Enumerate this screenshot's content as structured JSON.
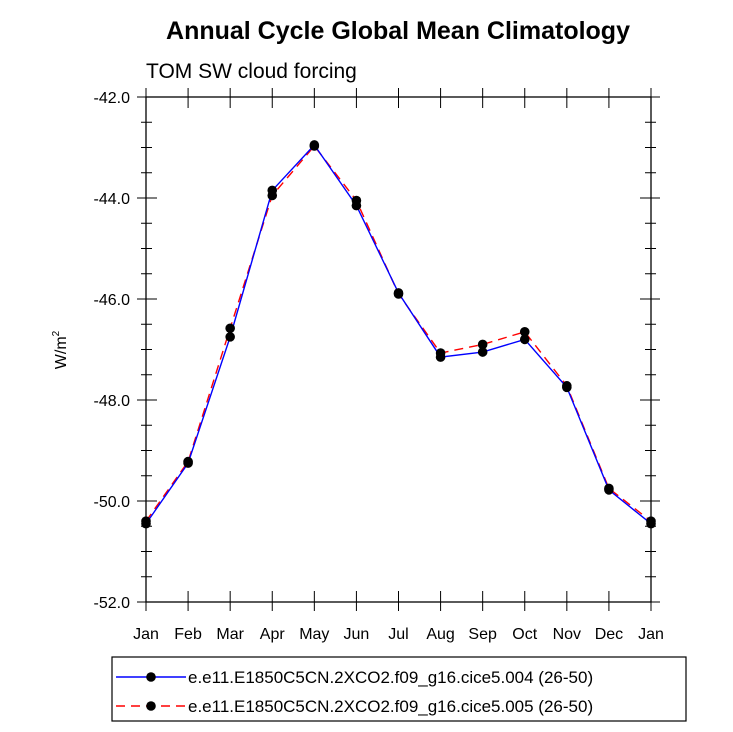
{
  "chart_data": {
    "type": "line",
    "title": "Annual Cycle Global Mean Climatology",
    "subtitle": "TOM SW cloud forcing",
    "xlabel": "",
    "ylabel": "W/m",
    "ylabel_superscript": "2",
    "categories": [
      "Jan",
      "Feb",
      "Mar",
      "Apr",
      "May",
      "Jun",
      "Jul",
      "Aug",
      "Sep",
      "Oct",
      "Nov",
      "Dec",
      "Jan"
    ],
    "ylim": [
      -52.0,
      -42.0
    ],
    "yticks": [
      -42.0,
      -44.0,
      -46.0,
      -48.0,
      -50.0,
      -52.0
    ],
    "ytick_labels": [
      "-42.0",
      "-44.0",
      "-46.0",
      "-48.0",
      "-50.0",
      "-52.0"
    ],
    "legend_position": "bottom",
    "series": [
      {
        "name": "e.e11.E1850C5CN.2XCO2.f09_g16.cice5.004 (26-50)",
        "color": "#0000ff",
        "line_style": "solid",
        "marker": "circle",
        "values": [
          -50.45,
          -49.25,
          -46.75,
          -43.85,
          -42.95,
          -44.15,
          -45.88,
          -47.15,
          -47.05,
          -46.8,
          -47.75,
          -49.78,
          -50.45
        ]
      },
      {
        "name": "e.e11.E1850C5CN.2XCO2.f09_g16.cice5.005 (26-50)",
        "color": "#ff0000",
        "line_style": "dashed",
        "marker": "circle",
        "values": [
          -50.4,
          -49.22,
          -46.58,
          -43.95,
          -42.97,
          -44.05,
          -45.9,
          -47.07,
          -46.9,
          -46.65,
          -47.72,
          -49.75,
          -50.4
        ]
      }
    ]
  }
}
